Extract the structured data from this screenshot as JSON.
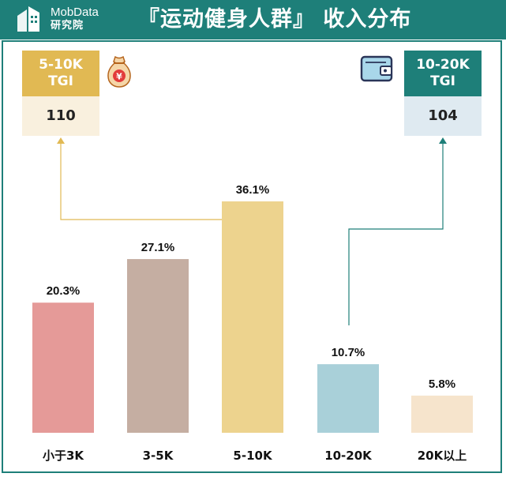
{
  "header": {
    "logo_name": "MobData",
    "logo_sub": "研究院",
    "title": "『运动健身人群』 收入分布"
  },
  "callouts": {
    "left": {
      "title_line1": "5-10K",
      "title_line2": "TGI",
      "value": "110"
    },
    "right": {
      "title_line1": "10-20K",
      "title_line2": "TGI",
      "value": "104"
    }
  },
  "icons": {
    "left": "money-bag-icon",
    "right": "wallet-icon"
  },
  "colors": {
    "header": "#1e7f79",
    "callout_left": "#e1b953",
    "callout_right": "#1e7f79",
    "bars": [
      "#e59a98",
      "#c5aea2",
      "#edd38e",
      "#a9d0d9",
      "#f6e4cc"
    ]
  },
  "chart_data": {
    "type": "bar",
    "categories": [
      "小于3K",
      "3-5K",
      "5-10K",
      "10-20K",
      "20K以上"
    ],
    "values": [
      20.3,
      27.1,
      36.1,
      10.7,
      5.8
    ],
    "value_labels": [
      "20.3%",
      "27.1%",
      "36.1%",
      "10.7%",
      "5.8%"
    ],
    "ylim": [
      0,
      40
    ],
    "grid": false,
    "legend": "none"
  }
}
